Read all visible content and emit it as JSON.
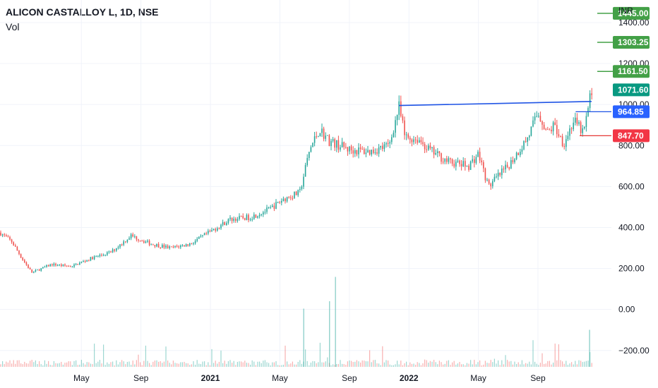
{
  "header": {
    "symbol_line": "ALICON CASTALLOY L, 1D, NSE",
    "volume_label": "Vol"
  },
  "chart_data": {
    "type": "candlestick",
    "currency": "INR",
    "price_axis": {
      "range": [
        -280,
        1510
      ],
      "ticks": [
        "1400.00",
        "1200.00",
        "1000.00",
        "800.00",
        "600.00",
        "400.00",
        "200.00",
        "0.00",
        "−200.00"
      ],
      "tick_values": [
        1400,
        1200,
        1000,
        800,
        600,
        400,
        200,
        0,
        -200
      ]
    },
    "time_axis": {
      "labels": [
        "May",
        "Sep",
        "2021",
        "May",
        "Sep",
        "2022",
        "May",
        "Sep"
      ],
      "label_pos": [
        0.5,
        3.5,
        7.0,
        10.5,
        14.0,
        17.0,
        20.5,
        23.5
      ],
      "bold": [
        "2021",
        "2022"
      ],
      "range_months": [
        -3.6,
        27.2
      ]
    },
    "price_path": {
      "months": [
        -3.6,
        -3.0,
        -2.5,
        -2.0,
        -1.0,
        0.0,
        1.0,
        2.0,
        3.0,
        4.0,
        5.0,
        6.0,
        7.0,
        8.0,
        9.0,
        10.0,
        10.7,
        11.5,
        12.0,
        12.5,
        13.0,
        13.5,
        14.0,
        15.0,
        16.0,
        16.5,
        16.8,
        17.5,
        18.0,
        19.0,
        20.0,
        20.5,
        21.0,
        22.0,
        23.0,
        23.5,
        24.0,
        24.3,
        24.8,
        25.3,
        25.8,
        26.2
      ],
      "prices": [
        375,
        330,
        250,
        180,
        220,
        210,
        250,
        280,
        360,
        320,
        300,
        320,
        380,
        440,
        450,
        490,
        540,
        570,
        780,
        880,
        820,
        800,
        780,
        770,
        800,
        990,
        840,
        830,
        780,
        720,
        700,
        760,
        600,
        700,
        840,
        960,
        860,
        900,
        810,
        920,
        860,
        1071.6
      ]
    },
    "volume_spikes": {
      "months": [
        11.7,
        13.0,
        13.3,
        26.1
      ],
      "heights": [
        0.55,
        0.62,
        0.85,
        0.35
      ]
    },
    "trendline": {
      "from": {
        "month": 16.5,
        "price": 995
      },
      "to": {
        "month": 26.2,
        "price": 1015
      },
      "color": "#1e53e5"
    },
    "horizontal_lines": [
      {
        "month_from": 25.4,
        "price": 964.85,
        "color": "#1e53e5"
      },
      {
        "month_from": 25.6,
        "price": 847.7,
        "color": "#e53935"
      }
    ],
    "price_tags": [
      {
        "label": "1445.00",
        "price": 1445.0,
        "color": "#43a047",
        "line": true
      },
      {
        "label": "1303.25",
        "price": 1303.25,
        "color": "#43a047",
        "line": true
      },
      {
        "label": "1161.50",
        "price": 1161.5,
        "color": "#43a047",
        "line": true
      },
      {
        "label": "1071.60",
        "price": 1071.6,
        "color": "#089981",
        "line": false
      },
      {
        "label": "964.85",
        "price": 964.85,
        "color": "#2962ff",
        "line": false
      },
      {
        "label": "847.70",
        "price": 847.7,
        "color": "#f23645",
        "line": false
      }
    ],
    "colors": {
      "up": "#26a69a",
      "down": "#ef5350",
      "grid": "#f0f3fa"
    }
  }
}
